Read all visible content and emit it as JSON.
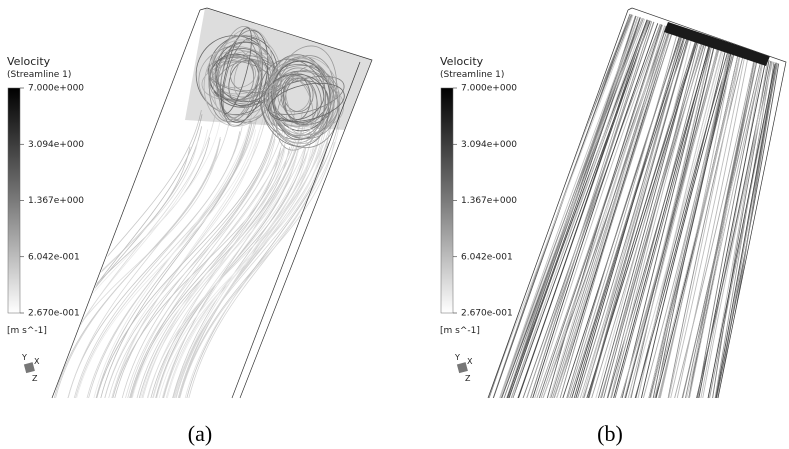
{
  "panels": [
    {
      "legend": {
        "title": "Velocity",
        "subtitle": "(Streamline 1)",
        "ticks": [
          "7.000e+000",
          "3.094e+000",
          "1.367e+000",
          "6.042e-001",
          "2.670e-001"
        ],
        "unit": "[m s^-1]"
      },
      "axes": {
        "y": "Y",
        "x": "X",
        "z": "Z"
      },
      "caption": "(a)"
    },
    {
      "legend": {
        "title": "Velocity",
        "subtitle": "(Streamline 1)",
        "ticks": [
          "7.000e+000",
          "3.094e+000",
          "1.367e+000",
          "6.042e-001",
          "2.670e-001"
        ],
        "unit": "[m s^-1]"
      },
      "axes": {
        "y": "Y",
        "x": "X",
        "z": "Z"
      },
      "caption": "(b)"
    }
  ]
}
